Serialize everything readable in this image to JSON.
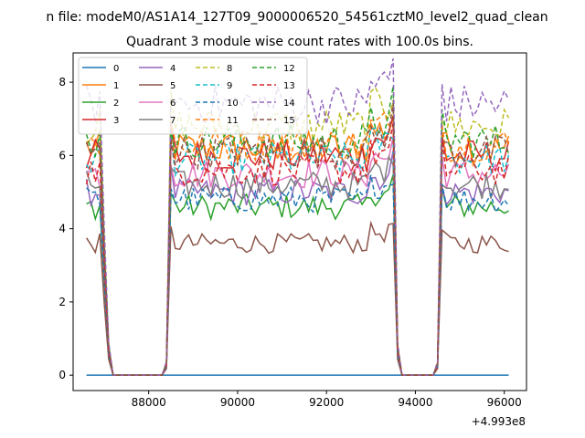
{
  "chart_data": {
    "type": "line",
    "suptitle": "n file: modeM0/AS1A14_127T09_9000006520_54561cztM0_level2_quad_clean",
    "title": "Quadrant 3 module wise count rates with 100.0s bins.",
    "xlabel": "",
    "ylabel": "",
    "x_offset_text": "+4.993e8",
    "xlim": [
      86300,
      96500
    ],
    "ylim": [
      -0.42,
      8.8
    ],
    "x_ticks": [
      88000,
      90000,
      92000,
      94000,
      96000
    ],
    "x_tick_labels": [
      "88000",
      "90000",
      "92000",
      "94000",
      "96000"
    ],
    "y_ticks": [
      0,
      2,
      4,
      6,
      8
    ],
    "y_tick_labels": [
      "0",
      "2",
      "4",
      "6",
      "8"
    ],
    "grid": false,
    "legend_placement": "top-left",
    "legend_columns": 4,
    "x_units_note": "x values are offsets from 4.993e8 s",
    "time_segments": [
      {
        "start": 86600,
        "end": 87000,
        "shape": "on"
      },
      {
        "start": 87100,
        "end": 88400,
        "shape": "drop"
      },
      {
        "start": 88500,
        "end": 93500,
        "shape": "on"
      },
      {
        "start": 93600,
        "end": 94500,
        "shape": "drop"
      },
      {
        "start": 94600,
        "end": 96100,
        "shape": "on"
      }
    ],
    "series": [
      {
        "name": "0",
        "color": "#1f77b4",
        "dash": "solid",
        "level": 0.0
      },
      {
        "name": "1",
        "color": "#ff7f0e",
        "dash": "solid",
        "level": 6.2
      },
      {
        "name": "2",
        "color": "#2ca02c",
        "dash": "solid",
        "level": 4.6
      },
      {
        "name": "3",
        "color": "#d62728",
        "dash": "solid",
        "level": 6.0
      },
      {
        "name": "4",
        "color": "#9467bd",
        "dash": "solid",
        "level": 5.0
      },
      {
        "name": "5",
        "color": "#8c564b",
        "dash": "solid",
        "level": 3.6
      },
      {
        "name": "6",
        "color": "#e377c2",
        "dash": "solid",
        "level": 5.5
      },
      {
        "name": "7",
        "color": "#7f7f7f",
        "dash": "solid",
        "level": 5.2
      },
      {
        "name": "8",
        "color": "#bcbd22",
        "dash": "dashed",
        "level": 6.8
      },
      {
        "name": "9",
        "color": "#17becf",
        "dash": "dashed",
        "level": 5.9
      },
      {
        "name": "10",
        "color": "#1f77b4",
        "dash": "dashed",
        "level": 4.8
      },
      {
        "name": "11",
        "color": "#ff7f0e",
        "dash": "dashed",
        "level": 6.3
      },
      {
        "name": "12",
        "color": "#2ca02c",
        "dash": "dashed",
        "level": 6.4
      },
      {
        "name": "13",
        "color": "#d62728",
        "dash": "dashed",
        "level": 5.6
      },
      {
        "name": "14",
        "color": "#9467bd",
        "dash": "dashed",
        "level": 7.4
      },
      {
        "name": "15",
        "color": "#8c564b",
        "dash": "dashed",
        "level": 6.1
      }
    ]
  }
}
